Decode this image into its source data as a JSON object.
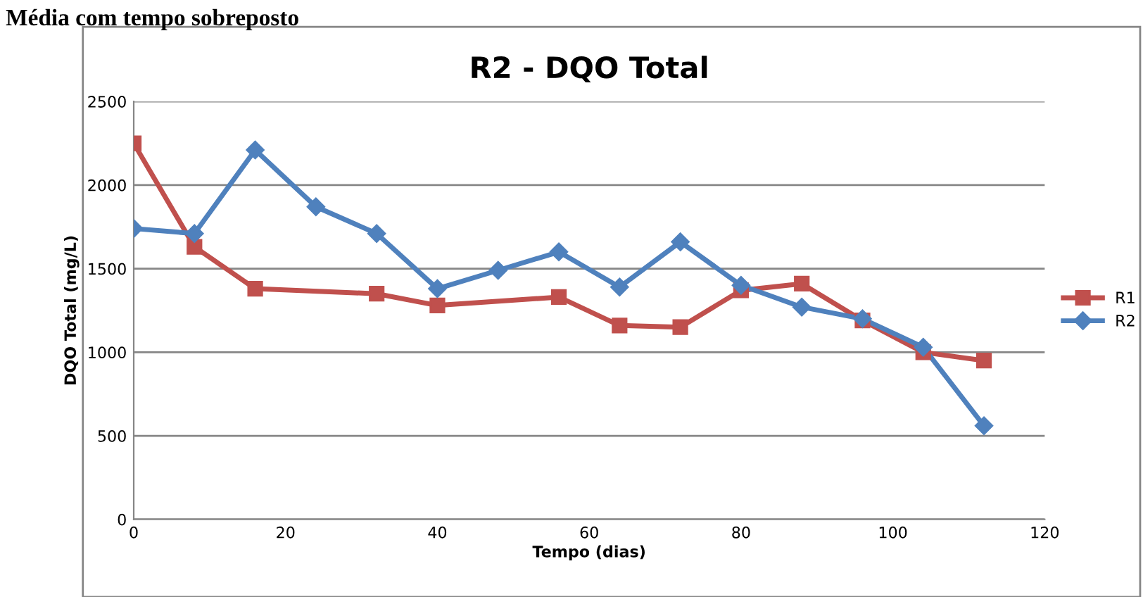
{
  "chart_data": {
    "type": "line",
    "title": "R2 - DQO Total",
    "xlabel": "Tempo (dias)",
    "ylabel": "DQO Total (mg/L)",
    "annotations": [
      "Média com tempo sobreposto"
    ],
    "series": [
      {
        "name": "R1",
        "color": "#c0504d",
        "marker": "square",
        "x": [
          0,
          8,
          16,
          32,
          40,
          56,
          64,
          72,
          80,
          88,
          96,
          104,
          112
        ],
        "values": [
          2250,
          1630,
          1380,
          1350,
          1280,
          1330,
          1160,
          1150,
          1370,
          1410,
          1190,
          1000,
          950
        ]
      },
      {
        "name": "R2",
        "color": "#4f81bd",
        "marker": "diamond",
        "x": [
          0,
          8,
          16,
          24,
          32,
          40,
          48,
          56,
          64,
          72,
          80,
          88,
          96,
          104,
          112
        ],
        "values": [
          1740,
          1710,
          2210,
          1870,
          1710,
          1380,
          1490,
          1600,
          1390,
          1660,
          1400,
          1270,
          1200,
          1030,
          560
        ]
      }
    ],
    "xlim": [
      0,
      120
    ],
    "xticks": [
      0,
      20,
      40,
      60,
      80,
      100,
      120
    ],
    "ylim": [
      0,
      2500
    ],
    "yticks": [
      0,
      500,
      1000,
      1500,
      2000,
      2500
    ],
    "grid": "y",
    "legend": "right",
    "line_style": "solid"
  }
}
